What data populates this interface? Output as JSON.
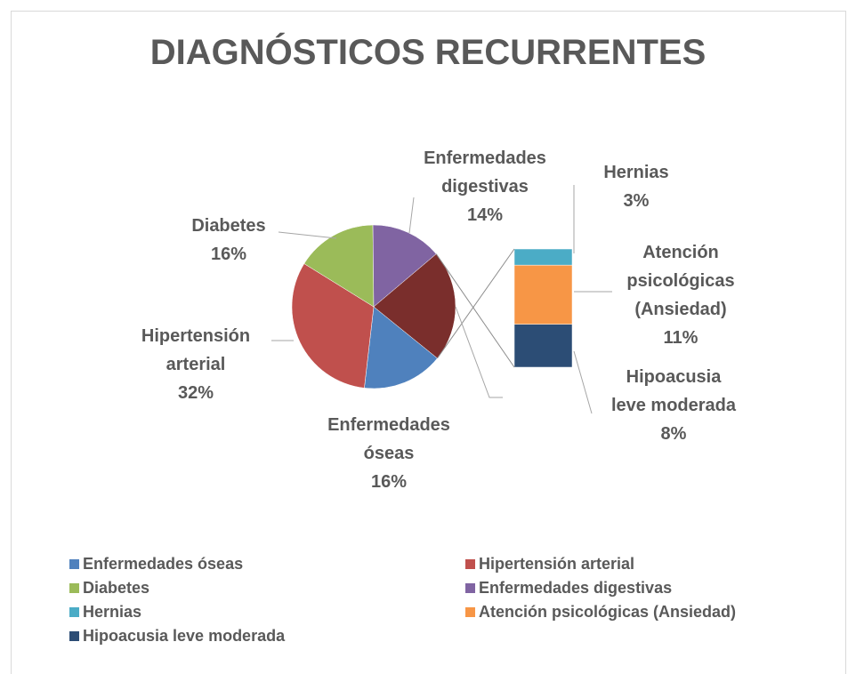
{
  "chart_data": {
    "type": "bar_of_pie",
    "title": "DIAGNÓSTICOS RECURRENTES",
    "categories": [
      "Enfermedades óseas",
      "Hipertensión arterial",
      "Diabetes",
      "Enfermedades digestivas",
      "Hernias",
      "Atención psicológicas (Ansiedad)",
      "Hipoacusia leve moderada"
    ],
    "values": [
      16,
      32,
      16,
      14,
      3,
      11,
      8
    ],
    "value_labels": [
      "16%",
      "32%",
      "16%",
      "14%",
      "3%",
      "11%",
      "8%"
    ],
    "colors": [
      "#4f81bd",
      "#c0504d",
      "#9bbb59",
      "#8064a2",
      "#4bacc6",
      "#f79646",
      "#2c4d75"
    ],
    "other_color": "#7a2e2c",
    "second_plot_values": 3,
    "legend": "bottom"
  }
}
